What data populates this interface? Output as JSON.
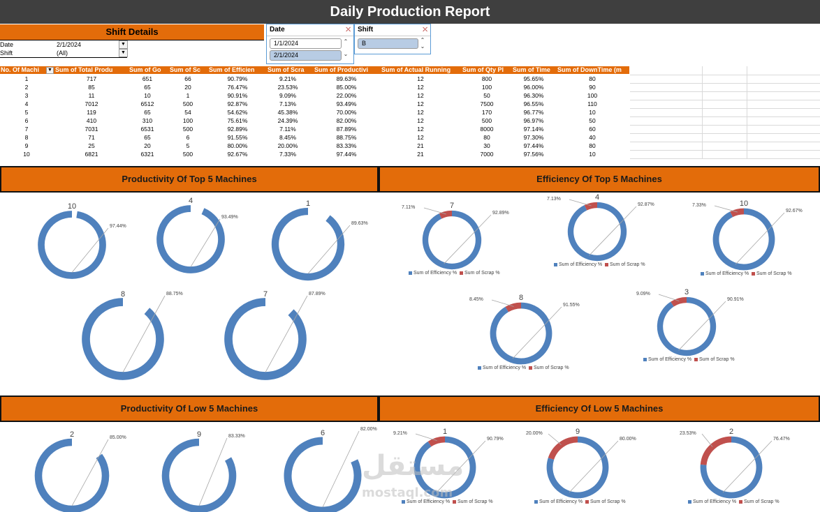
{
  "title": "Daily Production Report",
  "shift_details": {
    "header": "Shift Details",
    "rows": [
      {
        "label": "Date",
        "value": "2/1/2024"
      },
      {
        "label": "Shift",
        "value": "(All)"
      }
    ]
  },
  "date_slicer": {
    "title": "Date",
    "items": [
      "1/1/2024",
      "2/1/2024"
    ],
    "selected": "2/1/2024"
  },
  "shift_slicer": {
    "title": "Shift",
    "items": [
      "B"
    ],
    "selected": "B"
  },
  "pivot": {
    "headers": [
      "No. Of Machi",
      "Sum of Total Produ",
      "Sum of Go",
      "Sum of Sc",
      "Sum of Efficien",
      "Sum of Scra",
      "Sum of Productivi",
      "Sum of Actual Running",
      "Sum of Qty Pl",
      "Sum of Time",
      "Sum of DownTime (m"
    ],
    "rows": [
      [
        "1",
        "717",
        "651",
        "66",
        "90.79%",
        "9.21%",
        "89.63%",
        "12",
        "800",
        "95.65%",
        "80"
      ],
      [
        "2",
        "85",
        "65",
        "20",
        "76.47%",
        "23.53%",
        "85.00%",
        "12",
        "100",
        "96.00%",
        "90"
      ],
      [
        "3",
        "11",
        "10",
        "1",
        "90.91%",
        "9.09%",
        "22.00%",
        "12",
        "50",
        "96.30%",
        "100"
      ],
      [
        "4",
        "7012",
        "6512",
        "500",
        "92.87%",
        "7.13%",
        "93.49%",
        "12",
        "7500",
        "96.55%",
        "110"
      ],
      [
        "5",
        "119",
        "65",
        "54",
        "54.62%",
        "45.38%",
        "70.00%",
        "12",
        "170",
        "96.77%",
        "10"
      ],
      [
        "6",
        "410",
        "310",
        "100",
        "75.61%",
        "24.39%",
        "82.00%",
        "12",
        "500",
        "96.97%",
        "50"
      ],
      [
        "7",
        "7031",
        "6531",
        "500",
        "92.89%",
        "7.11%",
        "87.89%",
        "12",
        "8000",
        "97.14%",
        "60"
      ],
      [
        "8",
        "71",
        "65",
        "6",
        "91.55%",
        "8.45%",
        "88.75%",
        "12",
        "80",
        "97.30%",
        "40"
      ],
      [
        "9",
        "25",
        "20",
        "5",
        "80.00%",
        "20.00%",
        "83.33%",
        "21",
        "30",
        "97.44%",
        "80"
      ],
      [
        "10",
        "6821",
        "6321",
        "500",
        "92.67%",
        "7.33%",
        "97.44%",
        "21",
        "7000",
        "97.56%",
        "10"
      ]
    ]
  },
  "sections": {
    "prod_top": "Productivity Of Top 5 Machines",
    "eff_top": "Efficiency Of Top 5 Machines",
    "prod_low": "Productivity Of Low 5 Machines",
    "eff_low": "Efficiency Of Low 5 Machines"
  },
  "legend": {
    "efficiency": "Sum of Efficiency %",
    "scrap": "Sum of Scrap %"
  },
  "colors": {
    "blue": "#4f81bd",
    "red": "#c0504d",
    "orange": "#e36c0a",
    "title_bg": "#3f3f3f"
  },
  "chart_data": [
    {
      "type": "pie",
      "group": "productivity-top",
      "machines": [
        {
          "machine": "10",
          "productivity": 97.44,
          "label": "97.44%"
        },
        {
          "machine": "4",
          "productivity": 93.49,
          "label": "93.49%"
        },
        {
          "machine": "1",
          "productivity": 89.63,
          "label": "89.63%"
        },
        {
          "machine": "8",
          "productivity": 88.75,
          "label": "88.75%"
        },
        {
          "machine": "7",
          "productivity": 87.89,
          "label": "87.89%"
        }
      ]
    },
    {
      "type": "pie",
      "group": "efficiency-top",
      "machines": [
        {
          "machine": "7",
          "efficiency": 92.89,
          "scrap": 7.11,
          "eff_label": "92.89%",
          "scrap_label": "7.11%"
        },
        {
          "machine": "4",
          "efficiency": 92.87,
          "scrap": 7.13,
          "eff_label": "92.87%",
          "scrap_label": "7.13%"
        },
        {
          "machine": "10",
          "efficiency": 92.67,
          "scrap": 7.33,
          "eff_label": "92.67%",
          "scrap_label": "7.33%"
        },
        {
          "machine": "8",
          "efficiency": 91.55,
          "scrap": 8.45,
          "eff_label": "91.55%",
          "scrap_label": "8.45%"
        },
        {
          "machine": "3",
          "efficiency": 90.91,
          "scrap": 9.09,
          "eff_label": "90.91%",
          "scrap_label": "9.09%"
        }
      ]
    },
    {
      "type": "pie",
      "group": "productivity-low",
      "machines": [
        {
          "machine": "2",
          "productivity": 85.0,
          "label": "85.00%"
        },
        {
          "machine": "9",
          "productivity": 83.33,
          "label": "83.33%"
        },
        {
          "machine": "6",
          "productivity": 82.0,
          "label": "82.00%"
        }
      ]
    },
    {
      "type": "pie",
      "group": "efficiency-low",
      "machines": [
        {
          "machine": "1",
          "efficiency": 90.79,
          "scrap": 9.21,
          "eff_label": "90.79%",
          "scrap_label": "9.21%"
        },
        {
          "machine": "9",
          "efficiency": 80.0,
          "scrap": 20.0,
          "eff_label": "80.00%",
          "scrap_label": "20.00%"
        },
        {
          "machine": "2",
          "efficiency": 76.47,
          "scrap": 23.53,
          "eff_label": "76.47%",
          "scrap_label": "23.53%"
        }
      ]
    }
  ],
  "watermark": {
    "arabic": "مستقل",
    "latin": "mostaql.com"
  }
}
